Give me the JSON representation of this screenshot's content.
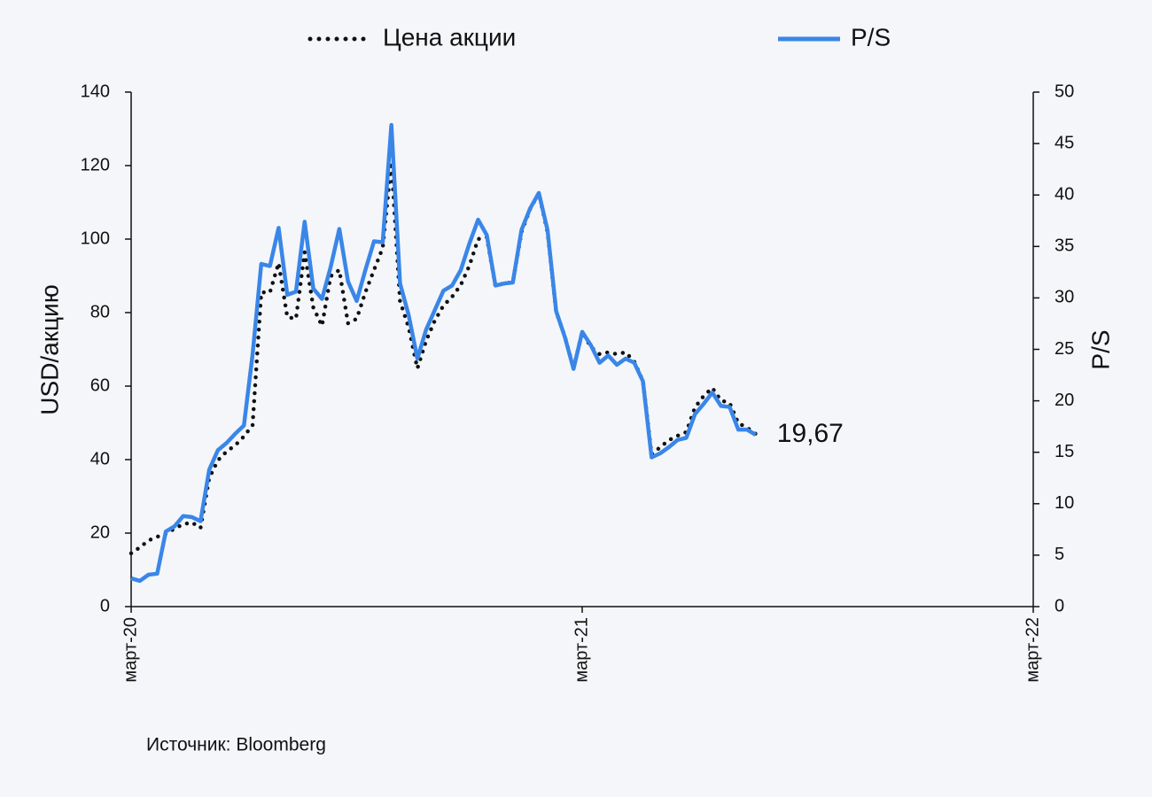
{
  "chart_data": {
    "type": "line",
    "y_label": "USD/акцию",
    "y2_label": "P/S",
    "source": "Источник: Bloomberg",
    "annotation": "19,67",
    "categories": [
      "март-20",
      null,
      null,
      null,
      null,
      null,
      null,
      null,
      null,
      null,
      null,
      null,
      null,
      null,
      null,
      null,
      null,
      null,
      null,
      null,
      null,
      null,
      null,
      null,
      null,
      null,
      null,
      null,
      null,
      null,
      null,
      null,
      null,
      null,
      null,
      null,
      null,
      null,
      null,
      null,
      null,
      null,
      null,
      null,
      null,
      null,
      null,
      null,
      null,
      null,
      null,
      null,
      "март-21",
      null,
      null,
      null,
      null,
      null,
      null,
      null,
      null,
      null,
      null,
      null,
      null,
      null,
      null,
      null,
      null,
      null,
      null,
      null,
      null,
      null,
      null,
      null,
      null,
      null,
      null,
      null,
      null,
      null,
      null,
      null,
      null,
      null,
      null,
      null,
      null,
      null,
      null,
      null,
      null,
      null,
      null,
      null,
      null,
      null,
      null,
      null,
      null,
      null,
      null,
      null,
      "март-22"
    ],
    "series": [
      {
        "name": "Цена акции",
        "color": "#111111",
        "line_style": "dotted",
        "axis": "y",
        "values": [
          14.5,
          16.1,
          18,
          19,
          19.8,
          21.2,
          22.4,
          22.9,
          21.4,
          35,
          39.8,
          42.2,
          43.9,
          46.3,
          49.4,
          85.5,
          85.5,
          93.5,
          78.8,
          78.3,
          96.4,
          81.4,
          76.4,
          89.9,
          91.6,
          77.1,
          78.3,
          85.5,
          91.6,
          97.6,
          121,
          83.1,
          75.9,
          64.8,
          72.3,
          77.8,
          81.9,
          84.3,
          87.5,
          92.8,
          100,
          100.5,
          87.2,
          88,
          88.2,
          101.9,
          108.2,
          112.5,
          101.9,
          80.2,
          73.5,
          64.8,
          74.7,
          70.6,
          68.7,
          69.2,
          68.7,
          69.2,
          66.7,
          61.4,
          41.4,
          43.4,
          45.3,
          46.5,
          47.5,
          54.2,
          57.3,
          59.5,
          56.1,
          55.4,
          49.9,
          48.7,
          47,
          null,
          null,
          null,
          null,
          null,
          null,
          null,
          null,
          null,
          null,
          null,
          null,
          null,
          null,
          null,
          null,
          null,
          null,
          null,
          null,
          null,
          null,
          null,
          null,
          null,
          null,
          null,
          null,
          null,
          null,
          null,
          null
        ]
      },
      {
        "name": "P/S",
        "color": "#3a86e8",
        "line_style": "solid",
        "axis": "y2",
        "values": [
          2.75,
          2.5,
          3.1,
          3.2,
          7.3,
          7.8,
          8.8,
          8.7,
          8.3,
          13.3,
          15.2,
          15.9,
          16.8,
          17.6,
          24.5,
          33.3,
          33.1,
          36.8,
          30.3,
          30.6,
          37.4,
          30.9,
          29.9,
          33,
          36.7,
          31.6,
          29.7,
          32.7,
          35.5,
          35.4,
          46.8,
          31.4,
          28.3,
          24.1,
          26.9,
          28.8,
          30.7,
          31.2,
          32.7,
          35.3,
          37.6,
          36.1,
          31.2,
          31.4,
          31.5,
          36.6,
          38.7,
          40.2,
          36.6,
          28.7,
          26.2,
          23.1,
          26.7,
          25.4,
          23.7,
          24.4,
          23.5,
          24.1,
          23.7,
          21.9,
          14.5,
          14.9,
          15.5,
          16.2,
          16.4,
          18.7,
          19.7,
          20.8,
          19.5,
          19.4,
          17.2,
          17.2,
          16.7,
          null,
          null,
          null,
          null,
          null,
          null,
          null,
          null,
          null,
          null,
          null,
          null,
          null,
          null,
          null,
          null,
          null,
          null,
          null,
          null,
          null,
          null,
          null,
          null,
          null,
          null,
          null,
          null,
          null,
          null,
          null,
          null
        ]
      }
    ],
    "ylim": [
      0,
      140
    ],
    "yticks": [
      0,
      20,
      40,
      60,
      80,
      100,
      120,
      140
    ],
    "y2lim": [
      0,
      50
    ],
    "y2ticks": [
      0,
      5,
      10,
      15,
      20,
      25,
      30,
      35,
      40,
      45,
      50
    ]
  }
}
